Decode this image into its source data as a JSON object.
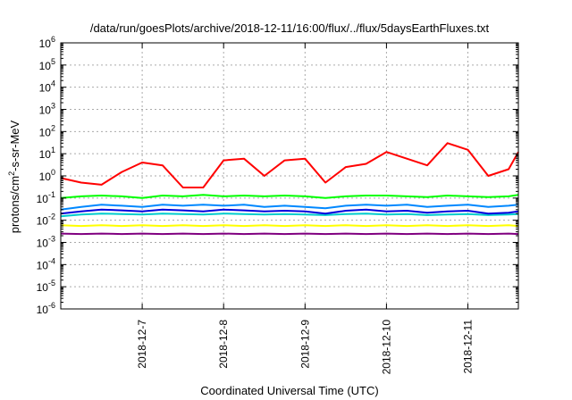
{
  "chart_data": {
    "type": "line",
    "title": "/data/run/goesPlots/archive/2018-12-11/16:00/flux/../flux/5daysEarthFluxes.txt",
    "xlabel": "Coordinated Universal Time (UTC)",
    "ylabel": {
      "base": "protons/cm",
      "sup": "2",
      "rest": "-s-sr-MeV"
    },
    "yscale": "log",
    "ylim": [
      1e-06,
      1000000.0
    ],
    "xlim": [
      0,
      5.62
    ],
    "grid": true,
    "legend": "none",
    "y_ticks": [
      {
        "value": 1e-06,
        "base": "10",
        "exp": "-6"
      },
      {
        "value": 1e-05,
        "base": "10",
        "exp": "-5"
      },
      {
        "value": 0.0001,
        "base": "10",
        "exp": "-4"
      },
      {
        "value": 0.001,
        "base": "10",
        "exp": "-3"
      },
      {
        "value": 0.01,
        "base": "10",
        "exp": "-2"
      },
      {
        "value": 0.1,
        "base": "10",
        "exp": "-1"
      },
      {
        "value": 1,
        "base": "10",
        "exp": "0"
      },
      {
        "value": 10,
        "base": "10",
        "exp": "1"
      },
      {
        "value": 100,
        "base": "10",
        "exp": "2"
      },
      {
        "value": 1000,
        "base": "10",
        "exp": "3"
      },
      {
        "value": 10000,
        "base": "10",
        "exp": "4"
      },
      {
        "value": 100000,
        "base": "10",
        "exp": "5"
      },
      {
        "value": 1000000,
        "base": "10",
        "exp": "6"
      }
    ],
    "x_ticks": [
      {
        "value": 1.0,
        "label": "2018-12-7"
      },
      {
        "value": 2.0,
        "label": "2018-12-8"
      },
      {
        "value": 3.0,
        "label": "2018-12-9"
      },
      {
        "value": 4.0,
        "label": "2018-12-10"
      },
      {
        "value": 5.0,
        "label": "2018-12-11"
      }
    ],
    "x": [
      0.0,
      0.25,
      0.5,
      0.75,
      1.0,
      1.25,
      1.5,
      1.75,
      2.0,
      2.25,
      2.5,
      2.75,
      3.0,
      3.25,
      3.5,
      3.75,
      4.0,
      4.25,
      4.5,
      4.75,
      5.0,
      5.25,
      5.5,
      5.62
    ],
    "series": [
      {
        "color": "#ff0000",
        "values": [
          0.8,
          0.5,
          0.4,
          1.5,
          4.0,
          3.0,
          0.3,
          0.3,
          5.0,
          6.0,
          1.0,
          5.0,
          6.0,
          0.5,
          2.5,
          3.5,
          12.0,
          6.0,
          3.0,
          30.0,
          15.0,
          1.0,
          2.0,
          12.0
        ]
      },
      {
        "color": "#00ff00",
        "values": [
          0.1,
          0.12,
          0.13,
          0.12,
          0.1,
          0.13,
          0.12,
          0.14,
          0.12,
          0.13,
          0.12,
          0.13,
          0.12,
          0.1,
          0.12,
          0.13,
          0.13,
          0.12,
          0.11,
          0.13,
          0.12,
          0.11,
          0.12,
          0.14
        ]
      },
      {
        "color": "#0088ff",
        "values": [
          0.03,
          0.04,
          0.05,
          0.045,
          0.04,
          0.05,
          0.045,
          0.05,
          0.045,
          0.05,
          0.04,
          0.045,
          0.04,
          0.035,
          0.045,
          0.05,
          0.045,
          0.05,
          0.04,
          0.045,
          0.05,
          0.04,
          0.045,
          0.05
        ]
      },
      {
        "color": "#00cccc",
        "values": [
          0.015,
          0.018,
          0.02,
          0.019,
          0.018,
          0.02,
          0.019,
          0.018,
          0.02,
          0.019,
          0.018,
          0.019,
          0.018,
          0.017,
          0.019,
          0.02,
          0.018,
          0.019,
          0.017,
          0.018,
          0.019,
          0.017,
          0.018,
          0.019
        ]
      },
      {
        "color": "#0000dd",
        "values": [
          0.02,
          0.025,
          0.03,
          0.028,
          0.025,
          0.03,
          0.028,
          0.025,
          0.03,
          0.028,
          0.025,
          0.027,
          0.025,
          0.02,
          0.027,
          0.03,
          0.025,
          0.027,
          0.022,
          0.025,
          0.027,
          0.02,
          0.022,
          0.025
        ]
      },
      {
        "color": "#ffff00",
        "values": [
          0.006,
          0.0055,
          0.006,
          0.0055,
          0.006,
          0.0055,
          0.006,
          0.0055,
          0.006,
          0.0055,
          0.006,
          0.0055,
          0.006,
          0.0055,
          0.006,
          0.0055,
          0.006,
          0.0055,
          0.006,
          0.0055,
          0.006,
          0.0055,
          0.006,
          0.0055
        ]
      },
      {
        "color": "#800080",
        "values": [
          0.0025,
          0.0024,
          0.0025,
          0.0024,
          0.0025,
          0.0024,
          0.0025,
          0.0024,
          0.0025,
          0.0024,
          0.0025,
          0.0024,
          0.0025,
          0.0024,
          0.0025,
          0.0024,
          0.0025,
          0.0024,
          0.0025,
          0.0024,
          0.0025,
          0.0024,
          0.0025,
          0.0024
        ]
      }
    ]
  }
}
